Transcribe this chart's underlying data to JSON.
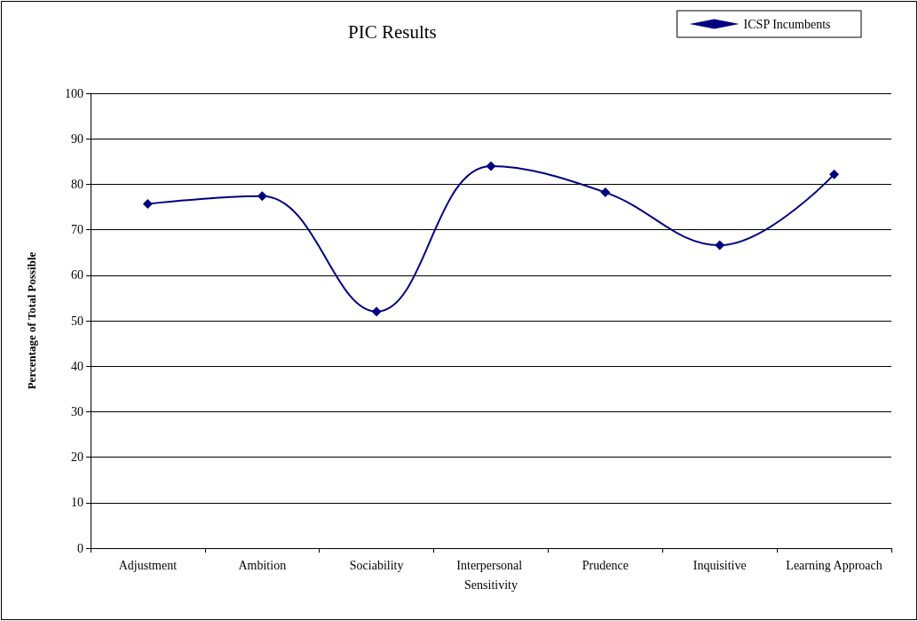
{
  "chart_data": {
    "type": "line",
    "title": "PIC Results",
    "ylabel": "Percentage of Total Possible",
    "categories": [
      "Adjustment",
      "Ambition",
      "Sociability",
      "Interpersonal Sensitivity",
      "Prudence",
      "Inquisitive",
      "Learning Approach"
    ],
    "series": [
      {
        "name": "ICSP Incumbents",
        "color": "#000080",
        "values": [
          75.7,
          77.4,
          52,
          84,
          78.2,
          66.6,
          82.2
        ]
      }
    ],
    "ylim": [
      0,
      100
    ],
    "yticks": [
      0,
      10,
      20,
      30,
      40,
      50,
      60,
      70,
      80,
      90,
      100
    ],
    "grid": "y",
    "legend": "top right",
    "marker": "diamond",
    "line_style": "solid"
  }
}
